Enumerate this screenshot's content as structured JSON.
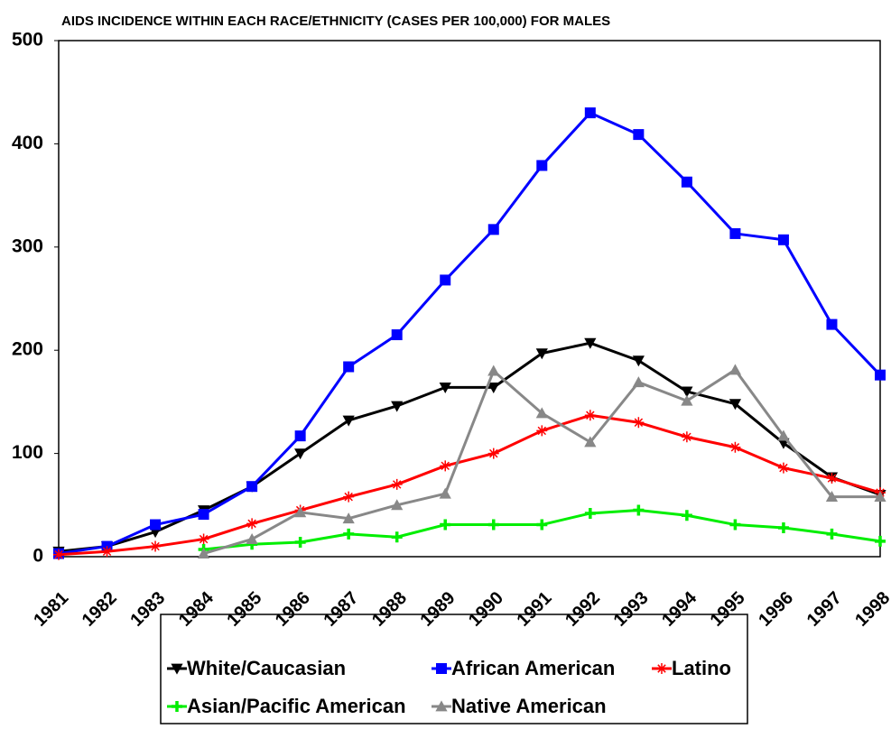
{
  "chart_data": {
    "type": "line",
    "title": "AIDS INCIDENCE WITHIN EACH RACE/ETHNICITY (CASES PER 100,000) FOR MALES",
    "categories": [
      "1981",
      "1982",
      "1983",
      "1984",
      "1985",
      "1986",
      "1987",
      "1988",
      "1989",
      "1990",
      "1991",
      "1992",
      "1993",
      "1994",
      "1995",
      "1996",
      "1997",
      "1998"
    ],
    "ylim": [
      0,
      500
    ],
    "yticks": [
      0,
      100,
      200,
      300,
      400,
      500
    ],
    "grid": false,
    "series": [
      {
        "name": "White/Caucasian",
        "color": "#000000",
        "marker": "triangle-down",
        "values": [
          5,
          10,
          24,
          45,
          68,
          100,
          132,
          146,
          164,
          164,
          197,
          207,
          190,
          160,
          148,
          110,
          77,
          60
        ]
      },
      {
        "name": "African American",
        "color": "#0000ff",
        "marker": "square",
        "values": [
          3,
          10,
          31,
          41,
          68,
          117,
          184,
          215,
          268,
          317,
          379,
          430,
          409,
          363,
          313,
          307,
          225,
          176
        ]
      },
      {
        "name": "Latino",
        "color": "#ff0000",
        "marker": "star",
        "values": [
          2,
          5,
          10,
          17,
          32,
          45,
          58,
          70,
          88,
          100,
          122,
          137,
          130,
          116,
          106,
          86,
          76,
          62
        ]
      },
      {
        "name": "Asian/Pacific American",
        "color": "#00ee00",
        "marker": "plus",
        "values": [
          null,
          null,
          null,
          7,
          12,
          14,
          22,
          19,
          31,
          31,
          31,
          42,
          45,
          40,
          31,
          28,
          22,
          15
        ]
      },
      {
        "name": "Native American",
        "color": "#888888",
        "marker": "triangle-up",
        "values": [
          null,
          null,
          null,
          3,
          17,
          43,
          37,
          50,
          61,
          180,
          139,
          111,
          169,
          151,
          181,
          117,
          58,
          58
        ]
      }
    ]
  }
}
